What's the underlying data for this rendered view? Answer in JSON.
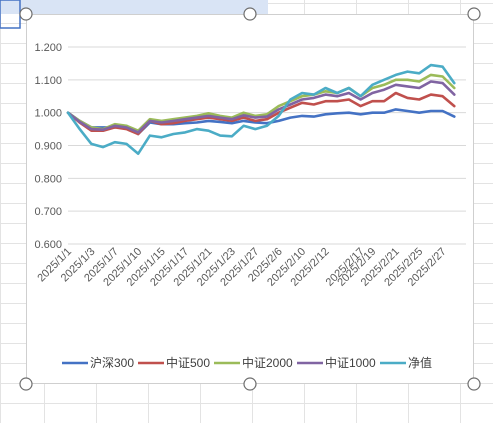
{
  "chart_data": {
    "type": "line",
    "title": "",
    "xlabel": "",
    "ylabel": "",
    "ylim": [
      0.6,
      1.2
    ],
    "yticks": [
      "0.600",
      "0.700",
      "0.800",
      "0.900",
      "1.000",
      "1.100",
      "1.200"
    ],
    "grid": true,
    "legend": "bottom",
    "x": [
      "2025/1/1",
      "2025/1/2",
      "2025/1/3",
      "2025/1/6",
      "2025/1/7",
      "2025/1/8",
      "2025/1/10",
      "2025/1/13",
      "2025/1/15",
      "2025/1/16",
      "2025/1/17",
      "2025/1/20",
      "2025/1/21",
      "2025/1/22",
      "2025/1/23",
      "2025/1/24",
      "2025/1/27",
      "2025/2/5",
      "2025/2/6",
      "2025/2/7",
      "2025/2/10",
      "2025/2/11",
      "2025/2/12",
      "2025/2/13",
      "2025/2/14",
      "2025/2/17",
      "2025/2/19",
      "2025/2/20",
      "2025/2/21",
      "2025/2/24",
      "2025/2/25",
      "2025/2/26",
      "2025/2/27",
      "2025/2/28"
    ],
    "tick_labels": [
      "2025/1/1",
      "2025/1/3",
      "2025/1/7",
      "2025/1/10",
      "2025/1/15",
      "2025/1/17",
      "2025/1/21",
      "2025/1/23",
      "2025/1/27",
      "2025/2/6",
      "2025/2/10",
      "2025/2/12",
      "2025/2/17",
      "2025/2/19",
      "2025/2/21",
      "2025/2/25",
      "2025/2/27"
    ],
    "series": [
      {
        "name": "沪深300",
        "color": "#4472c4",
        "values": [
          1.0,
          0.975,
          0.955,
          0.955,
          0.955,
          0.96,
          0.935,
          0.97,
          0.965,
          0.965,
          0.968,
          0.97,
          0.975,
          0.972,
          0.968,
          0.975,
          0.97,
          0.968,
          0.975,
          0.985,
          0.99,
          0.988,
          0.995,
          0.998,
          1.0,
          0.995,
          1.0,
          1.0,
          1.01,
          1.005,
          1.0,
          1.005,
          1.005,
          0.988
        ]
      },
      {
        "name": "中证500",
        "color": "#c0504d",
        "values": [
          1.0,
          0.97,
          0.945,
          0.945,
          0.955,
          0.95,
          0.935,
          0.975,
          0.965,
          0.968,
          0.975,
          0.98,
          0.985,
          0.98,
          0.975,
          0.985,
          0.975,
          0.98,
          1.0,
          1.015,
          1.03,
          1.025,
          1.035,
          1.035,
          1.04,
          1.02,
          1.035,
          1.035,
          1.06,
          1.045,
          1.04,
          1.055,
          1.05,
          1.02
        ]
      },
      {
        "name": "中证2000",
        "color": "#9bbb59",
        "values": [
          1.0,
          0.975,
          0.955,
          0.95,
          0.965,
          0.96,
          0.945,
          0.98,
          0.975,
          0.98,
          0.985,
          0.99,
          0.998,
          0.99,
          0.985,
          1.0,
          0.99,
          0.995,
          1.02,
          1.035,
          1.05,
          1.055,
          1.065,
          1.06,
          1.075,
          1.05,
          1.075,
          1.085,
          1.1,
          1.1,
          1.095,
          1.115,
          1.11,
          1.075
        ]
      },
      {
        "name": "中证1000",
        "color": "#8064a2",
        "values": [
          1.0,
          0.972,
          0.95,
          0.948,
          0.96,
          0.955,
          0.94,
          0.975,
          0.97,
          0.975,
          0.98,
          0.985,
          0.99,
          0.985,
          0.98,
          0.992,
          0.985,
          0.988,
          1.01,
          1.025,
          1.04,
          1.045,
          1.055,
          1.05,
          1.06,
          1.04,
          1.06,
          1.07,
          1.085,
          1.08,
          1.075,
          1.095,
          1.09,
          1.055
        ]
      },
      {
        "name": "净值",
        "color": "#4bacc6",
        "values": [
          1.0,
          0.95,
          0.905,
          0.895,
          0.91,
          0.905,
          0.875,
          0.93,
          0.925,
          0.935,
          0.94,
          0.95,
          0.945,
          0.93,
          0.928,
          0.96,
          0.95,
          0.96,
          0.99,
          1.04,
          1.06,
          1.055,
          1.075,
          1.06,
          1.075,
          1.05,
          1.085,
          1.1,
          1.115,
          1.125,
          1.12,
          1.145,
          1.14,
          1.09
        ]
      }
    ]
  }
}
